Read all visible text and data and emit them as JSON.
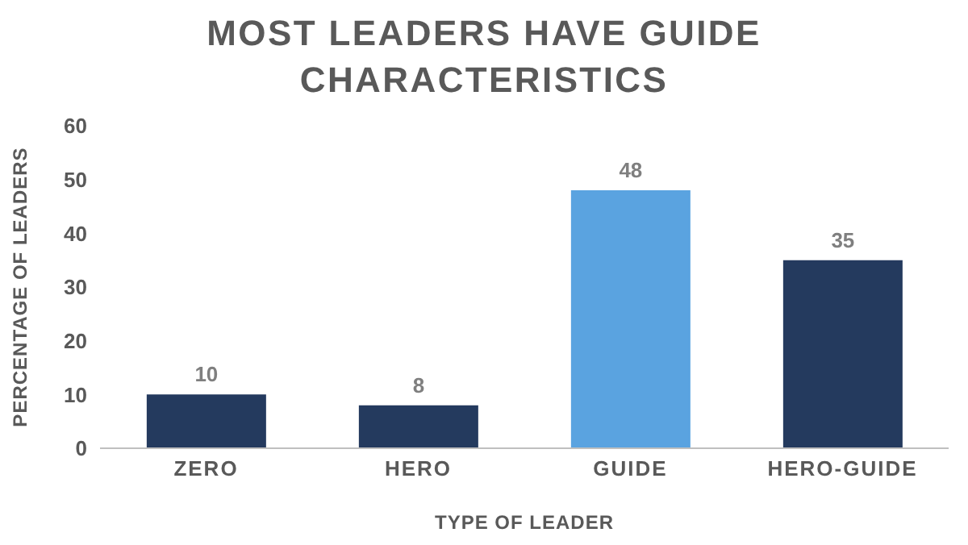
{
  "chart_data": {
    "type": "bar",
    "title": "MOST LEADERS HAVE GUIDE CHARACTERISTICS",
    "xlabel": "TYPE OF LEADER",
    "ylabel": "PERCENTAGE OF LEADERS",
    "categories": [
      "ZERO",
      "HERO",
      "GUIDE",
      "HERO-GUIDE"
    ],
    "values": [
      10,
      8,
      48,
      35
    ],
    "colors": [
      "#243a5e",
      "#243a5e",
      "#5aa3e0",
      "#243a5e"
    ],
    "ylim": [
      0,
      60
    ],
    "yticks": [
      0,
      10,
      20,
      30,
      40,
      50,
      60
    ],
    "data_labels": true
  }
}
